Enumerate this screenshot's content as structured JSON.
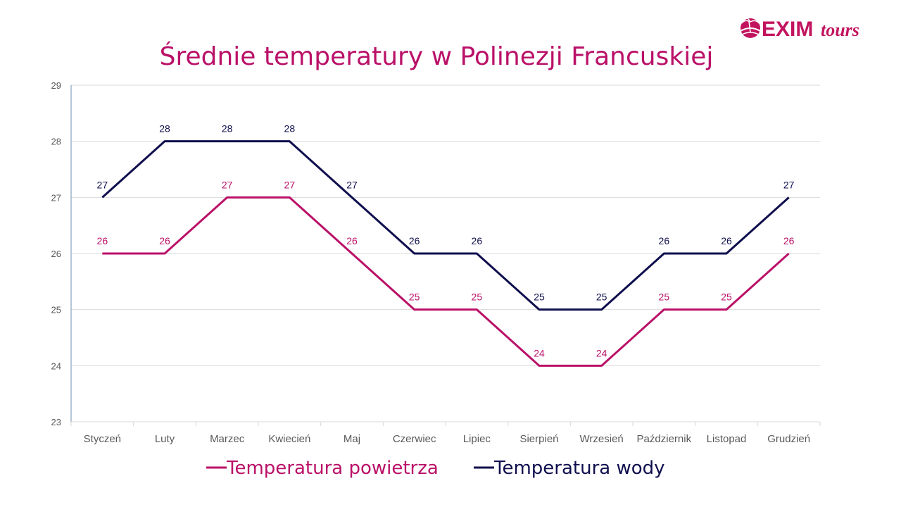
{
  "logo": {
    "text_main": "EXIM",
    "text_script": "tours"
  },
  "colors": {
    "air": "#BA1168",
    "water": "#0F0F4E",
    "grid": "#D9D9D9",
    "axis": "#6F8FB0",
    "tick_label": "#595959",
    "logo": "#C2145E"
  },
  "chart_data": {
    "type": "line",
    "title": "Średnie temperatury  w Polinezji Francuskiej",
    "categories": [
      "Styczeń",
      "Luty",
      "Marzec",
      "Kwiecień",
      "Maj",
      "Czerwiec",
      "Lipiec",
      "Sierpień",
      "Wrzesień",
      "Październik",
      "Listopad",
      "Grudzień"
    ],
    "series": [
      {
        "name": "Temperatura powietrza",
        "color": "#BA1168",
        "values": [
          26,
          26,
          27,
          27,
          26,
          25,
          25,
          24,
          24,
          25,
          25,
          26
        ]
      },
      {
        "name": "Temperatura wody",
        "color": "#0F0F4E",
        "values": [
          27,
          28,
          28,
          28,
          27,
          26,
          26,
          25,
          25,
          26,
          26,
          27
        ]
      }
    ],
    "ylim": [
      23,
      29
    ],
    "yticks": [
      23,
      24,
      25,
      26,
      27,
      28,
      29
    ],
    "grid": true,
    "legend": "bottom",
    "data_labels": true
  }
}
